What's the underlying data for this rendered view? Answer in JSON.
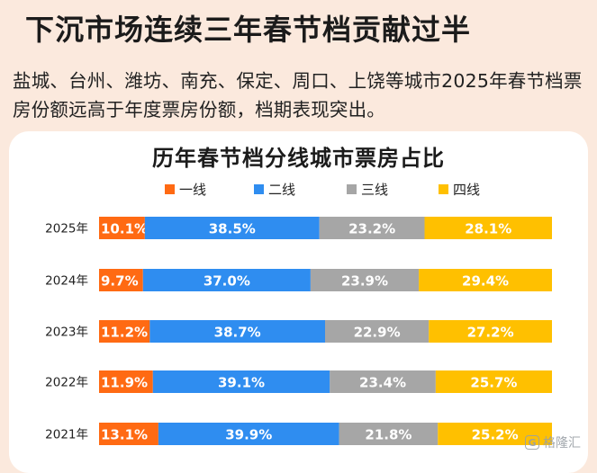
{
  "headline": "下沉市场连续三年春节档贡献过半",
  "subtext": "盐城、台州、潍坊、南充、保定、周口、上饶等城市2025年春节档票房份额远高于年度票房份额，档期表现突出。",
  "watermark": {
    "text": "格隆汇",
    "logo_glyph": "G"
  },
  "chart_data": {
    "type": "bar",
    "orientation": "horizontal",
    "stacked": true,
    "normalized_percent": true,
    "title": "历年春节档分线城市票房占比",
    "legend_position": "top",
    "categories": [
      "2025年",
      "2024年",
      "2023年",
      "2022年",
      "2021年"
    ],
    "series": [
      {
        "name": "一线",
        "color": "#ff6a13",
        "values": [
          10.1,
          9.7,
          11.2,
          11.9,
          13.1
        ],
        "labels": [
          "10.1%",
          "9.7%",
          "11.2%",
          "11.9%",
          "13.1%"
        ]
      },
      {
        "name": "二线",
        "color": "#2f8df0",
        "values": [
          38.5,
          37.0,
          38.7,
          39.1,
          39.9
        ],
        "labels": [
          "38.5%",
          "37.0%",
          "38.7%",
          "39.1%",
          "39.9%"
        ]
      },
      {
        "name": "三线",
        "color": "#a6a6a6",
        "values": [
          23.2,
          23.9,
          22.9,
          23.4,
          21.8
        ],
        "labels": [
          "23.2%",
          "23.9%",
          "22.9%",
          "23.4%",
          "21.8%"
        ]
      },
      {
        "name": "四线",
        "color": "#ffc000",
        "values": [
          28.1,
          29.4,
          27.2,
          25.7,
          25.2
        ],
        "labels": [
          "28.1%",
          "29.4%",
          "27.2%",
          "25.7%",
          "25.2%"
        ]
      }
    ]
  }
}
